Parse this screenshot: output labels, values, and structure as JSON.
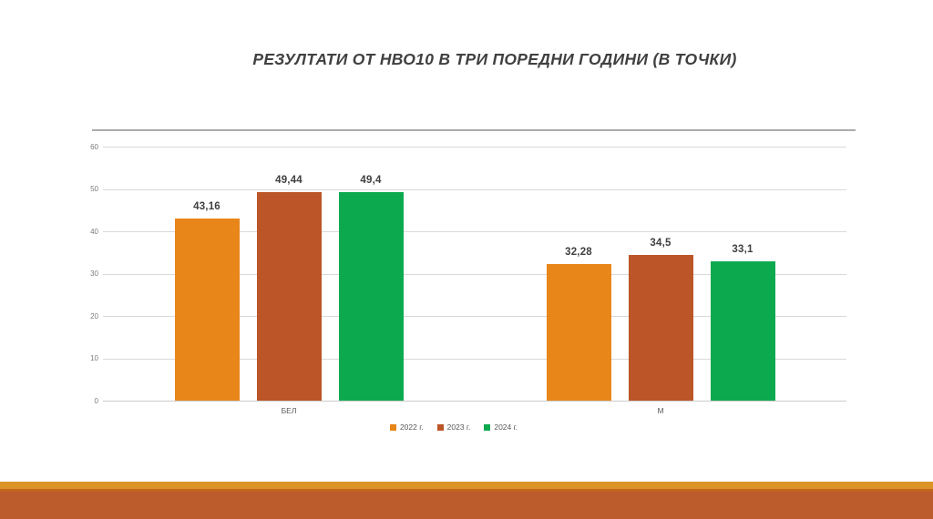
{
  "slide": {
    "title": "РЕЗУЛТАТИ ОТ НВО10 В ТРИ ПОРЕДНИ ГОДИНИ (В ТОЧКИ)"
  },
  "chart_data": {
    "type": "bar",
    "title": "РЕЗУЛТАТИ ОТ НВО10 В ТРИ ПОРЕДНИ ГОДИНИ (В ТОЧКИ)",
    "categories": [
      "БЕЛ",
      "М"
    ],
    "series": [
      {
        "name": "2022 г.",
        "color": "#e8861a",
        "values": [
          43.16,
          32.28
        ],
        "value_labels": [
          "43,16",
          "32,28"
        ]
      },
      {
        "name": "2023 г.",
        "color": "#bc5528",
        "values": [
          49.44,
          34.5
        ],
        "value_labels": [
          "49,44",
          "34,5"
        ]
      },
      {
        "name": "2024 г.",
        "color": "#0da94f",
        "values": [
          49.4,
          33.1
        ],
        "value_labels": [
          "49,4",
          "33,1"
        ]
      }
    ],
    "xlabel": "",
    "ylabel": "",
    "ylim": [
      0,
      60
    ],
    "yticks": [
      0,
      10,
      20,
      30,
      40,
      50,
      60
    ],
    "grid": true,
    "legend_position": "bottom"
  },
  "theme": {
    "title_color": "#404040",
    "axis_text_color": "#7a7a7a",
    "category_text_color": "#595959",
    "legend_text_color": "#595959",
    "data_label_color": "#3f3f3f",
    "gridline_color": "#d9d9d9",
    "top_border_color": "#ababab",
    "footer_stripe_color": "#dd9426",
    "footer_edge_color": "#c2661f",
    "footer_band_color": "#bc5b2c"
  }
}
